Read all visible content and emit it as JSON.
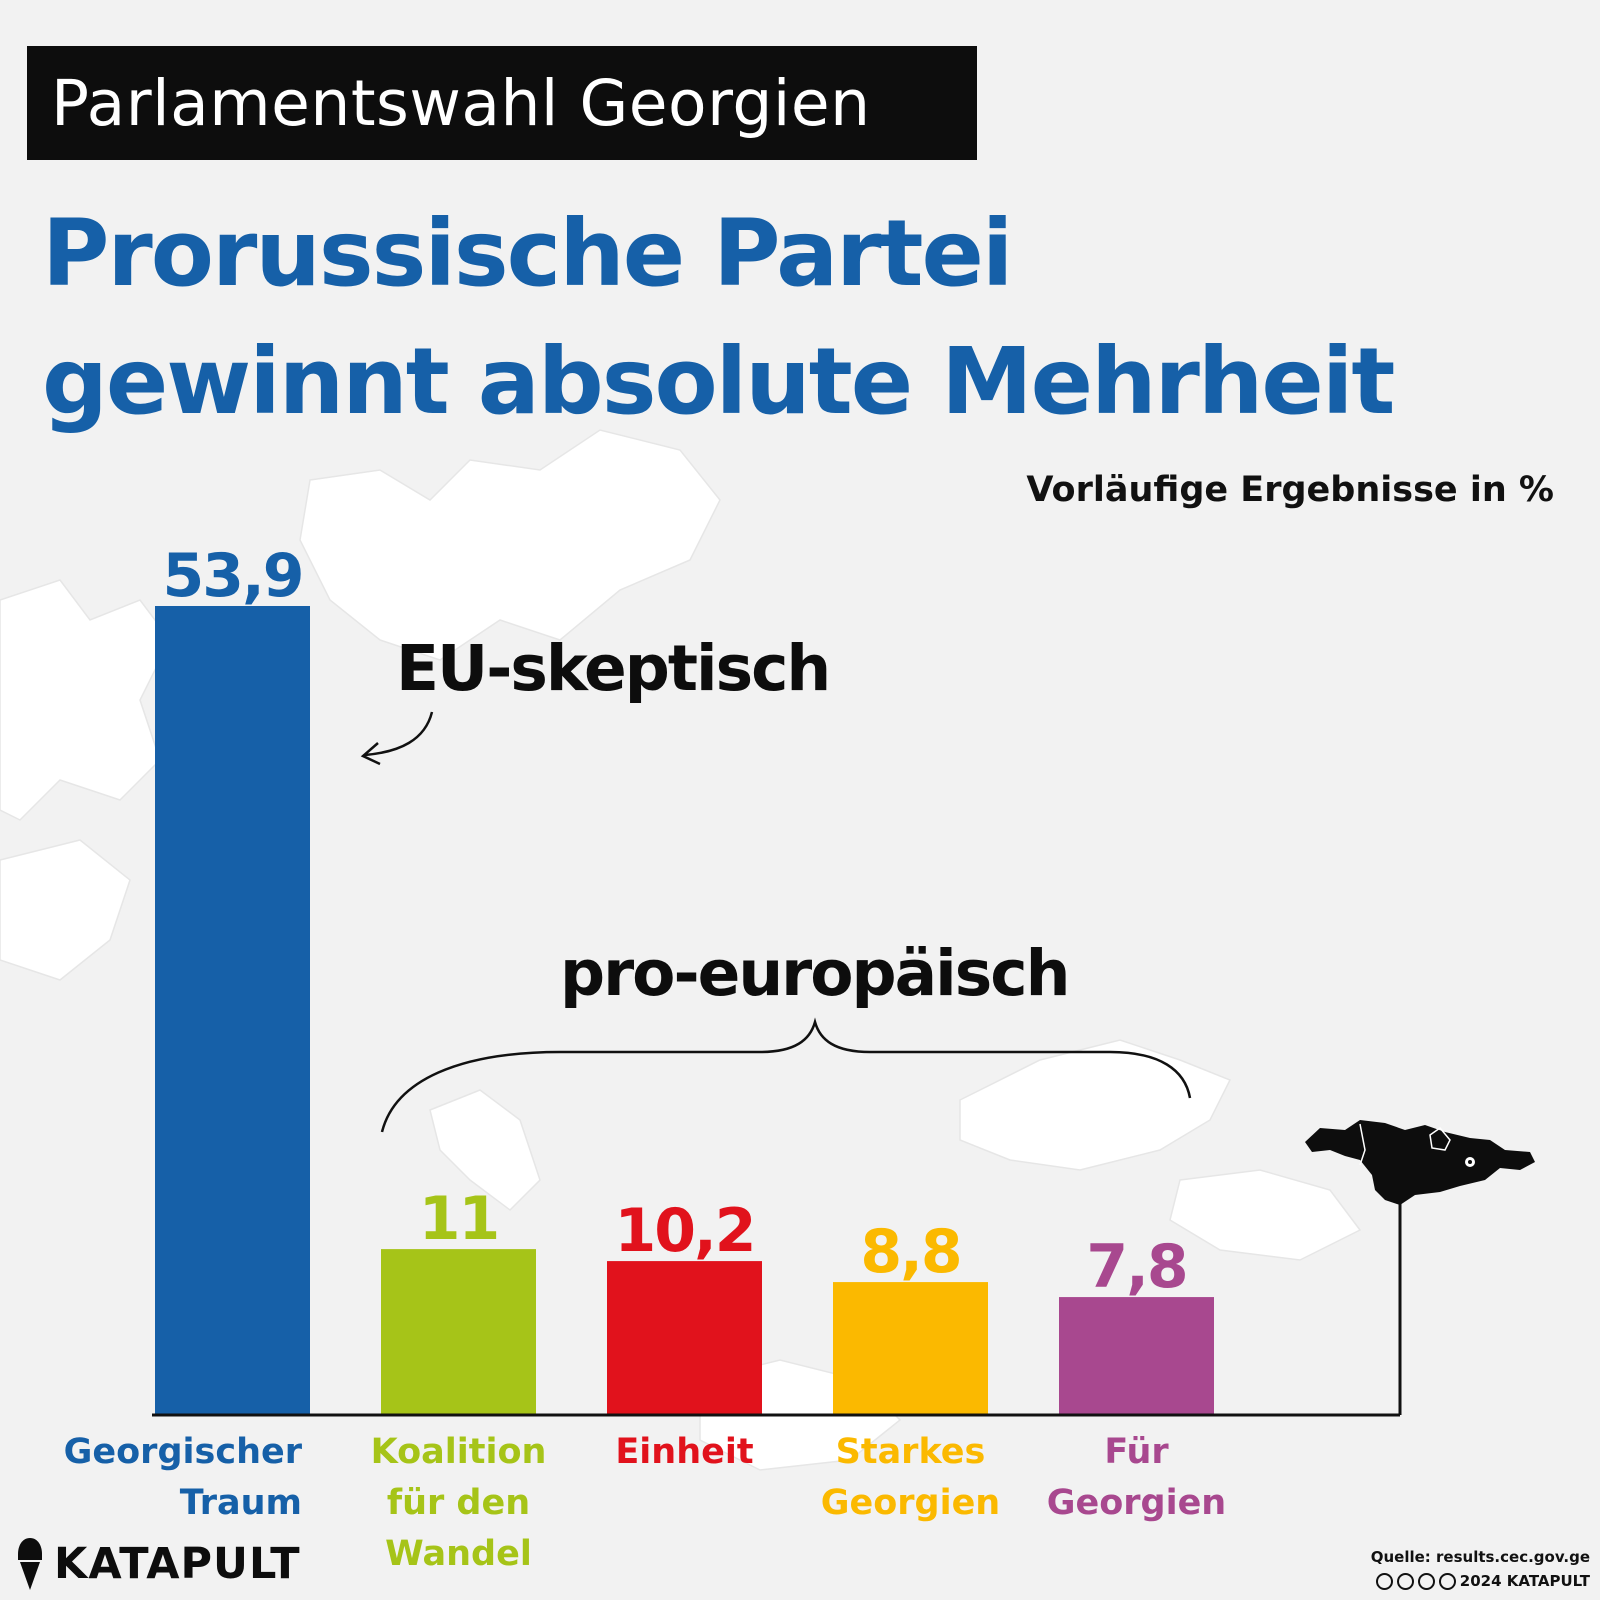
{
  "header": {
    "banner": "Parlamentswahl Georgien",
    "title_line1": "Prorussische Partei",
    "title_line2": "gewinnt absolute Mehrheit",
    "subtitle": "Vorläufige Ergebnisse in %"
  },
  "annotations": {
    "eu_skeptic": "EU-skeptisch",
    "pro_european": "pro-europäisch"
  },
  "chart_data": {
    "type": "bar",
    "categories": [
      "Georgischer Traum",
      "Koalition für den Wandel",
      "Einheit",
      "Starkes Georgien",
      "Für Georgien"
    ],
    "category_lines": [
      [
        "Georgischer",
        "Traum"
      ],
      [
        "Koalition",
        "für den",
        "Wandel"
      ],
      [
        "Einheit"
      ],
      [
        "Starkes",
        "Georgien"
      ],
      [
        "Für",
        "Georgien"
      ]
    ],
    "values": [
      53.9,
      11,
      10.2,
      8.8,
      7.8
    ],
    "value_labels": [
      "53,9",
      "11",
      "10,2",
      "8,8",
      "7,8"
    ],
    "colors": [
      "#1660a8",
      "#a6c418",
      "#e1121c",
      "#fbb900",
      "#a8488f"
    ],
    "title": "Prorussische Partei gewinnt absolute Mehrheit",
    "xlabel": "",
    "ylabel": "Vorläufige Ergebnisse in %",
    "grid": false,
    "legend": "none"
  },
  "icons": {
    "map": "georgia-map-icon",
    "brand": "katapult-logo-icon",
    "license": "cc-by-nc-nd-icon"
  },
  "footer": {
    "brand": "KATAPULT",
    "source": "Quelle: results.cec.gov.ge",
    "copyright": "2024 KATAPULT"
  }
}
